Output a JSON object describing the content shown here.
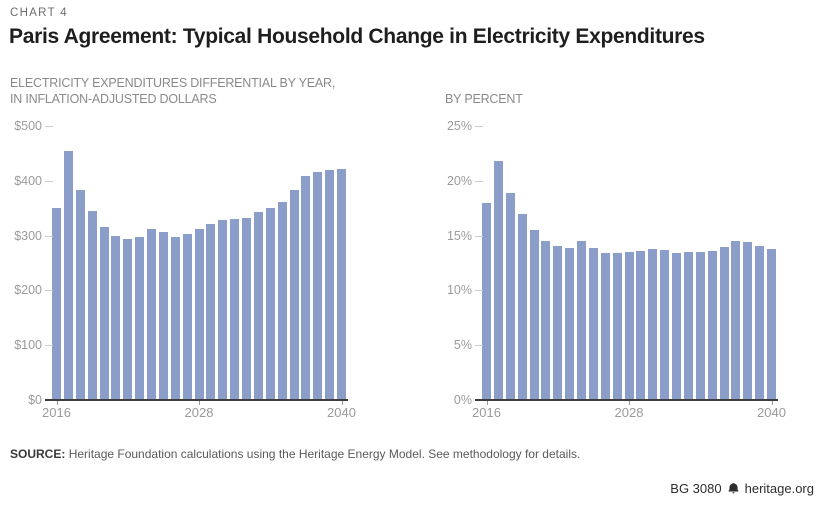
{
  "page": {
    "kicker": "CHART 4",
    "title": "Paris Agreement: Typical Household Change in Electricity Expenditures",
    "source_label": "SOURCE:",
    "source_text": "Heritage Foundation calculations using the Heritage Energy Model. See methodology for details.",
    "footer_id": "BG 3080",
    "footer_site": "heritage.org"
  },
  "colors": {
    "bar": "#8b9dc9",
    "axis": "#3c3c3c",
    "title_text": "#1e1e1e",
    "muted_text": "#9b9b9b"
  },
  "chart_data": [
    {
      "type": "bar",
      "title_lines": [
        "ELECTRICITY EXPENDITURES DIFFERENTIAL BY YEAR,",
        "IN INFLATION-ADJUSTED DOLLARS"
      ],
      "categories": [
        2016,
        2017,
        2018,
        2019,
        2020,
        2021,
        2022,
        2023,
        2024,
        2025,
        2026,
        2027,
        2028,
        2029,
        2030,
        2031,
        2032,
        2033,
        2034,
        2035,
        2036,
        2037,
        2038,
        2039,
        2040
      ],
      "values": [
        350,
        454,
        383,
        345,
        315,
        299,
        294,
        297,
        313,
        306,
        297,
        303,
        312,
        321,
        328,
        331,
        333,
        343,
        351,
        361,
        383,
        408,
        416,
        420,
        422
      ],
      "ylim": [
        0,
        500
      ],
      "ytick_labels": [
        "$500",
        "$400",
        "$300",
        "$200",
        "$100",
        "$0"
      ],
      "xtick_labels": [
        "2016",
        "2028",
        "2040"
      ],
      "grid": false,
      "legend": false,
      "xlabel": "",
      "ylabel": "dollars"
    },
    {
      "type": "bar",
      "title_lines": [
        "BY PERCENT"
      ],
      "categories": [
        2016,
        2017,
        2018,
        2019,
        2020,
        2021,
        2022,
        2023,
        2024,
        2025,
        2026,
        2027,
        2028,
        2029,
        2030,
        2031,
        2032,
        2033,
        2034,
        2035,
        2036,
        2037,
        2038,
        2039,
        2040
      ],
      "values": [
        18.0,
        21.8,
        18.9,
        17.0,
        15.5,
        14.5,
        14.1,
        13.9,
        14.5,
        13.9,
        13.4,
        13.4,
        13.5,
        13.6,
        13.8,
        13.7,
        13.4,
        13.5,
        13.5,
        13.6,
        14.0,
        14.5,
        14.4,
        14.1,
        13.8
      ],
      "ylim": [
        0,
        25
      ],
      "ytick_labels": [
        "25%",
        "20%",
        "15%",
        "10%",
        "5%",
        "0%"
      ],
      "xtick_labels": [
        "2016",
        "2028",
        "2040"
      ],
      "grid": false,
      "legend": false,
      "xlabel": "",
      "ylabel": "percent"
    }
  ]
}
